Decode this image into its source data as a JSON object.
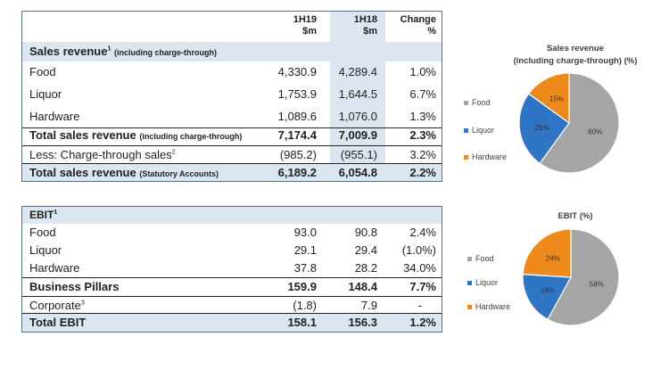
{
  "sales_table": {
    "header": {
      "col1": "1H19\n$m",
      "col2": "1H18\n$m",
      "col3": "Change\n%"
    },
    "section_label": "Sales revenue",
    "section_sup": "1",
    "section_note": "(including charge-through)",
    "rows": [
      {
        "label": "Food",
        "v1": "4,330.9",
        "v2": "4,289.4",
        "v3": "1.0%"
      },
      {
        "label": "Liquor",
        "v1": "1,753.9",
        "v2": "1,644.5",
        "v3": "6.7%"
      },
      {
        "label": "Hardware",
        "v1": "1,089.6",
        "v2": "1,076.0",
        "v3": "1.3%"
      }
    ],
    "total_charge": {
      "label": "Total sales revenue",
      "note": "(including charge-through)",
      "v1": "7,174.4",
      "v2": "7,009.9",
      "v3": "2.3%"
    },
    "less": {
      "label": "Less: Charge-through sales",
      "sup": "2",
      "v1": "(985.2)",
      "v2": "(955.1)",
      "v3": "3.2%"
    },
    "total_statutory": {
      "label": "Total sales revenue",
      "note": "(Statutory Accounts)",
      "v1": "6,189.2",
      "v2": "6,054.8",
      "v3": "2.2%"
    }
  },
  "ebit_table": {
    "section_label": "EBIT",
    "section_sup": "1",
    "rows": [
      {
        "label": "Food",
        "v1": "93.0",
        "v2": "90.8",
        "v3": "2.4%"
      },
      {
        "label": "Liquor",
        "v1": "29.1",
        "v2": "29.4",
        "v3": "(1.0%)"
      },
      {
        "label": "Hardware",
        "v1": "37.8",
        "v2": "28.2",
        "v3": "34.0%"
      }
    ],
    "pillars": {
      "label": "Business Pillars",
      "v1": "159.9",
      "v2": "148.4",
      "v3": "7.7%"
    },
    "corporate": {
      "label": "Corporate",
      "sup": "3",
      "v1": "(1.8)",
      "v2": "7.9",
      "v3": "-"
    },
    "total": {
      "label": "Total EBIT",
      "v1": "158.1",
      "v2": "156.3",
      "v3": "1.2%"
    }
  },
  "chart_data": [
    {
      "type": "pie",
      "title": "Sales revenue\n(including charge-through) (%)",
      "categories": [
        "Food",
        "Liquor",
        "Hardware"
      ],
      "values": [
        60,
        25,
        15
      ],
      "labels": [
        "60%",
        "25%",
        "15%"
      ],
      "colors": [
        "#a5a5a5",
        "#2e75c6",
        "#ee8a1b"
      ],
      "legend": "left"
    },
    {
      "type": "pie",
      "title": "EBIT (%)",
      "categories": [
        "Food",
        "Liquor",
        "Hardware"
      ],
      "values": [
        58,
        18,
        24
      ],
      "labels": [
        "58%",
        "18%",
        "24%"
      ],
      "colors": [
        "#a5a5a5",
        "#2e75c6",
        "#ee8a1b"
      ],
      "legend": "left"
    }
  ]
}
